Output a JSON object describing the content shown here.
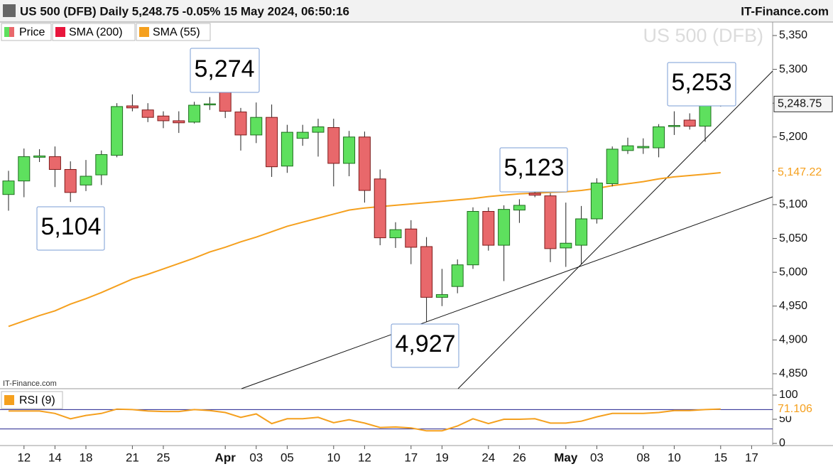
{
  "chart_data": {
    "type": "candlestick",
    "title": "US 500 (DFB) Daily 5,248.75 -0.05% 15 May 2024, 06:50:16",
    "source": "IT-Finance.com",
    "watermark": "US 500 (DFB)",
    "small_source": "IT-Finance.com",
    "categories": [
      null,
      "12",
      null,
      "14",
      null,
      "18",
      null,
      null,
      "21",
      null,
      "25",
      null,
      null,
      null,
      "Apr",
      null,
      "03",
      null,
      "05",
      null,
      null,
      "10",
      null,
      "12",
      null,
      null,
      "17",
      null,
      "19",
      null,
      null,
      "24",
      null,
      "26",
      null,
      null,
      "May",
      null,
      "03",
      null,
      null,
      "08",
      null,
      "10",
      null,
      null,
      "15",
      null,
      "17"
    ],
    "month_labels": [
      "Apr",
      "May"
    ],
    "series": [
      {
        "name": "Price",
        "up_color": "#5ee05e",
        "down_color": "#e8686b",
        "open": [
          5115,
          5135,
          5170,
          5171,
          5152,
          5129,
          5144,
          5173,
          5246,
          5240,
          5231,
          5224,
          5222,
          5248,
          5272,
          5237,
          5203,
          5229,
          5157,
          5198,
          5207,
          5214,
          5161,
          5200,
          5138,
          5051,
          5064,
          5038,
          4963,
          4979,
          5011,
          5090,
          5040,
          5092,
          5117,
          5113,
          5036,
          5040,
          5079,
          5131,
          5180,
          5184,
          5184,
          5216,
          5225,
          5216,
          5250,
          null,
          null
        ],
        "high": [
          5150,
          5183,
          5182,
          5186,
          5164,
          5166,
          5180,
          5250,
          5263,
          5250,
          5238,
          5238,
          5252,
          5259,
          5274,
          5243,
          5251,
          5248,
          5218,
          5218,
          5227,
          5227,
          5209,
          5208,
          5152,
          5074,
          5077,
          5052,
          5005,
          5019,
          5096,
          5096,
          5099,
          5108,
          5123,
          5117,
          5103,
          5098,
          5139,
          5186,
          5199,
          5198,
          5219,
          5238,
          5235,
          5253,
          5252,
          null,
          null
        ],
        "low": [
          5091,
          5111,
          5163,
          5126,
          5104,
          5120,
          5129,
          5170,
          5238,
          5222,
          5213,
          5206,
          5220,
          5240,
          5228,
          5180,
          5191,
          5141,
          5147,
          5187,
          5171,
          5127,
          5142,
          5103,
          5040,
          5036,
          5012,
          4927,
          4950,
          4969,
          5005,
          5032,
          4987,
          5073,
          5111,
          5015,
          5008,
          5012,
          5072,
          5127,
          5175,
          5175,
          5170,
          5203,
          5211,
          5193,
          5245,
          null,
          null
        ],
        "close": [
          5135,
          5171,
          5172,
          5152,
          5118,
          5142,
          5174,
          5245,
          5243,
          5229,
          5224,
          5221,
          5247,
          5249,
          5238,
          5203,
          5229,
          5156,
          5207,
          5207,
          5215,
          5161,
          5200,
          5121,
          5051,
          5063,
          5037,
          4963,
          4967,
          5011,
          5090,
          5040,
          5093,
          5099,
          5114,
          5035,
          5043,
          5079,
          5132,
          5182,
          5187,
          5186,
          5215,
          5217,
          5216,
          5250,
          5248.75,
          null,
          null
        ],
        "last_label": "5,248.75"
      },
      {
        "name": "SMA (200)",
        "color": "#e8163c"
      },
      {
        "name": "SMA (55)",
        "color": "#f5a01e",
        "values": [
          4920,
          4928,
          4936,
          4943,
          4953,
          4961,
          4970,
          4980,
          4990,
          4997,
          5005,
          5013,
          5021,
          5030,
          5037,
          5045,
          5052,
          5060,
          5068,
          5074,
          5080,
          5086,
          5092,
          5095,
          5097,
          5099,
          5101,
          5103,
          5105,
          5107,
          5109,
          5112,
          5114,
          5116,
          5117,
          5118,
          5119,
          5121,
          5124,
          5128,
          5131,
          5134,
          5138,
          5141,
          5143,
          5145,
          5147.22,
          null,
          null
        ],
        "last_label": "5,147.22"
      }
    ],
    "ylim": [
      4830,
      5371
    ],
    "yticks": [
      {
        "value": 4850,
        "label": "4,850"
      },
      {
        "value": 4900,
        "label": "4,900"
      },
      {
        "value": 4950,
        "label": "4,950"
      },
      {
        "value": 5000,
        "label": "5,000"
      },
      {
        "value": 5050,
        "label": "5,050"
      },
      {
        "value": 5100,
        "label": "5,100"
      },
      {
        "value": 5150,
        "label": "5,150"
      },
      {
        "value": 5200,
        "label": "5,200"
      },
      {
        "value": 5250,
        "label": "5,250"
      },
      {
        "value": 5300,
        "label": "5,300"
      },
      {
        "value": 5350,
        "label": "5,350"
      }
    ],
    "annotations": [
      "5,274",
      "5,104",
      "4,927",
      "5,123",
      "5,253"
    ],
    "rsi": {
      "name": "RSI (9)",
      "color": "#f5a01e",
      "values": [
        67,
        67,
        67,
        62,
        51,
        58,
        62,
        71,
        70,
        67,
        66,
        66,
        70,
        68,
        64,
        54,
        61,
        41,
        51,
        51,
        54,
        43,
        49,
        42,
        33,
        34,
        32,
        26,
        26,
        36,
        51,
        41,
        50,
        50,
        51,
        42,
        42,
        46,
        55,
        62,
        62,
        62,
        64,
        68,
        68,
        70,
        71.106,
        null,
        null
      ],
      "last_label": "71.106",
      "ylim": [
        0,
        100
      ],
      "yticks": [
        0,
        50,
        100
      ],
      "levels": [
        70,
        30
      ],
      "level_color": "#23238e"
    }
  }
}
